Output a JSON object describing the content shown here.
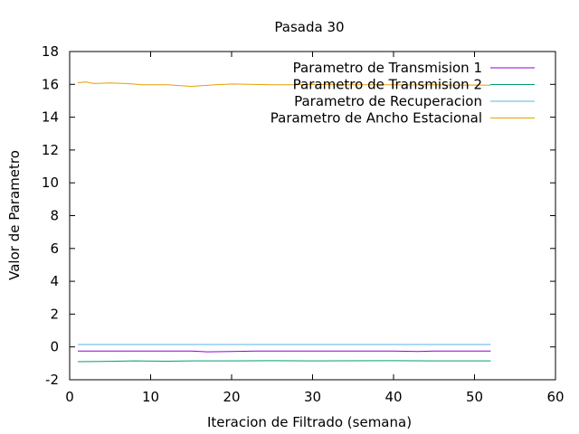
{
  "chart_data": {
    "type": "line",
    "title": "Pasada 30",
    "xlabel": "Iteracion de Filtrado (semana)",
    "ylabel": "Valor de Parametro",
    "xlim": [
      0,
      60
    ],
    "ylim": [
      -2,
      18
    ],
    "xticks": [
      0,
      10,
      20,
      30,
      40,
      50,
      60
    ],
    "yticks": [
      -2,
      0,
      2,
      4,
      6,
      8,
      10,
      12,
      14,
      16,
      18
    ],
    "grid": false,
    "legend_position": "top-right",
    "series": [
      {
        "name": "Parametro de Transmision 1",
        "color": "#9400d3",
        "x": [
          1,
          5,
          10,
          15,
          17,
          20,
          23,
          30,
          40,
          43,
          45,
          52
        ],
        "y": [
          -0.25,
          -0.25,
          -0.25,
          -0.25,
          -0.3,
          -0.28,
          -0.25,
          -0.25,
          -0.25,
          -0.28,
          -0.25,
          -0.25
        ]
      },
      {
        "name": "Parametro de Transmision 2",
        "color": "#009e73",
        "x": [
          1,
          4,
          8,
          12,
          15,
          20,
          25,
          30,
          40,
          45,
          52
        ],
        "y": [
          -0.9,
          -0.88,
          -0.85,
          -0.87,
          -0.85,
          -0.85,
          -0.84,
          -0.85,
          -0.84,
          -0.85,
          -0.85
        ]
      },
      {
        "name": "Parametro de Recuperacion",
        "color": "#56b4e9",
        "x": [
          1,
          10,
          20,
          30,
          40,
          52
        ],
        "y": [
          0.15,
          0.15,
          0.15,
          0.15,
          0.15,
          0.15
        ]
      },
      {
        "name": "Parametro de Ancho Estacional",
        "color": "#e69f00",
        "x": [
          1,
          2,
          3,
          5,
          7,
          9,
          12,
          15,
          18,
          20,
          22,
          25,
          28,
          30,
          33,
          35,
          38,
          40,
          42,
          45,
          48,
          50,
          52
        ],
        "y": [
          16.1,
          16.15,
          16.05,
          16.08,
          16.05,
          15.98,
          15.97,
          15.88,
          15.98,
          16.02,
          16.0,
          15.97,
          15.98,
          16.0,
          15.97,
          15.98,
          15.97,
          15.98,
          15.96,
          15.97,
          15.95,
          15.96,
          15.95
        ]
      }
    ]
  }
}
